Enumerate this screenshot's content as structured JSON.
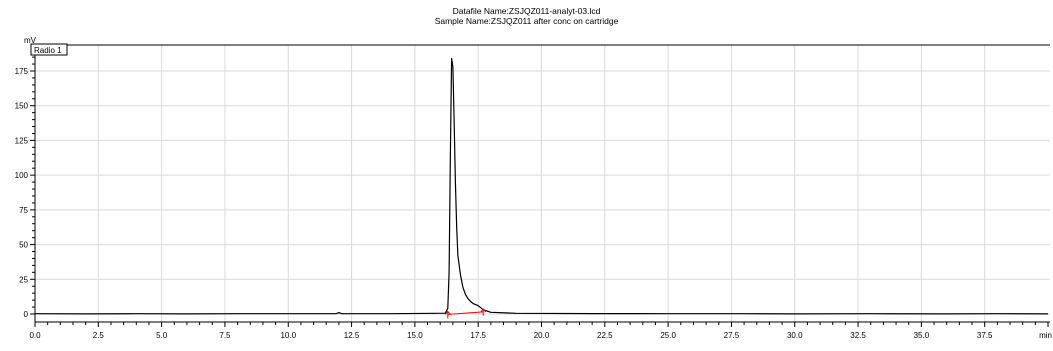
{
  "header": {
    "datafile": "Datafile Name:ZSJQZ011-analyt-03.lcd",
    "sample": "Sample Name:ZSJQZ011 after conc on cartridge"
  },
  "chart_data": {
    "type": "line",
    "ylabel": "mV",
    "xlabel": "min",
    "legend": "Radio 1",
    "xlim": [
      0,
      40
    ],
    "ylim": [
      -5,
      188
    ],
    "x_ticks": [
      "0.0",
      "2.5",
      "5.0",
      "7.5",
      "10.0",
      "12.5",
      "15.0",
      "17.5",
      "20.0",
      "22.5",
      "25.0",
      "27.5",
      "30.0",
      "32.5",
      "35.0",
      "37.5"
    ],
    "y_ticks": [
      "0",
      "25",
      "50",
      "75",
      "100",
      "125",
      "150",
      "175"
    ],
    "grid": true,
    "series": [
      {
        "color": "#000000",
        "x": [
          0,
          2,
          4,
          6,
          8,
          10,
          11.9,
          12,
          12.1,
          14,
          15.8,
          16.2,
          16.3,
          16.35,
          16.4,
          16.45,
          16.5,
          16.55,
          16.6,
          16.65,
          16.7,
          16.8,
          16.9,
          17.0,
          17.1,
          17.2,
          17.3,
          17.5,
          17.7,
          18.0,
          19,
          22,
          25,
          28,
          30,
          33,
          36,
          38,
          40
        ],
        "y": [
          0.2,
          0.1,
          0.2,
          0.1,
          0.2,
          0.2,
          0.3,
          1.0,
          0.3,
          0.2,
          0.5,
          0.6,
          4,
          30,
          110,
          184,
          178,
          140,
          95,
          62,
          42,
          28,
          19,
          14,
          11,
          9,
          7.5,
          6,
          3,
          1.2,
          0.5,
          0.3,
          0.2,
          0.2,
          0.1,
          0.2,
          0.1,
          0.2,
          0.1
        ]
      }
    ],
    "baseline": {
      "color": "#ff0000",
      "x": [
        16.3,
        17.7
      ],
      "y": [
        -0.3,
        1.5
      ]
    }
  }
}
